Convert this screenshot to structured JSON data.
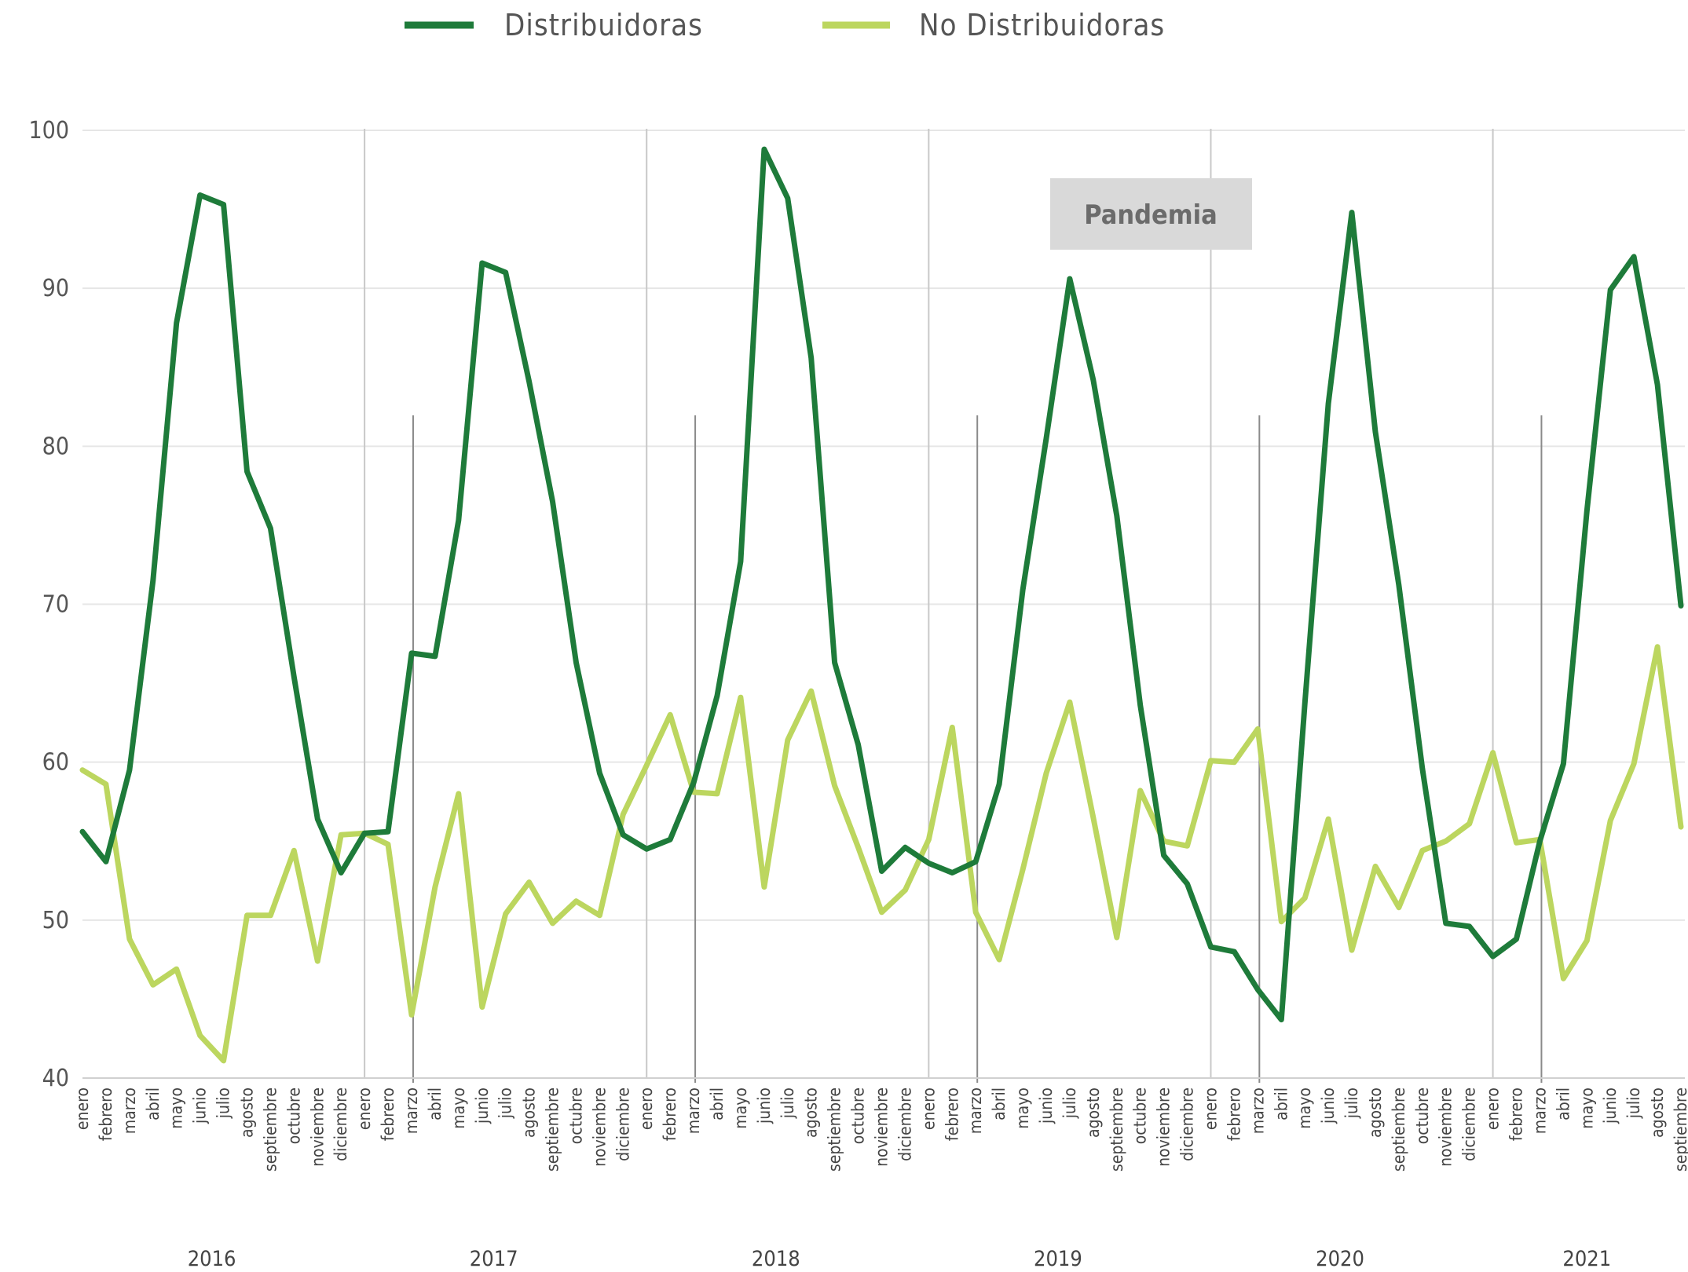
{
  "chart_data": {
    "type": "line",
    "title": "",
    "xlabel": "",
    "ylabel": "",
    "ylim": [
      40,
      100
    ],
    "yticks": [
      40,
      50,
      60,
      70,
      80,
      90,
      100
    ],
    "grid": true,
    "legend_position": "top-center",
    "annotation": "Pandemia",
    "years": [
      "2016",
      "2017",
      "2018",
      "2019",
      "2020",
      "2021"
    ],
    "months_per_year": [
      12,
      12,
      12,
      12,
      12,
      9
    ],
    "x": [
      "enero",
      "febrero",
      "marzo",
      "abril",
      "mayo",
      "junio",
      "julio",
      "agosto",
      "septiembre",
      "octubre",
      "noviembre",
      "diciembre",
      "enero",
      "febrero",
      "marzo",
      "abril",
      "mayo",
      "junio",
      "julio",
      "agosto",
      "septiembre",
      "octubre",
      "noviembre",
      "diciembre",
      "enero",
      "febrero",
      "marzo",
      "abril",
      "mayo",
      "junio",
      "julio",
      "agosto",
      "septiembre",
      "octubre",
      "noviembre",
      "diciembre",
      "enero",
      "febrero",
      "marzo",
      "abril",
      "mayo",
      "junio",
      "julio",
      "agosto",
      "septiembre",
      "octubre",
      "noviembre",
      "diciembre",
      "enero",
      "febrero",
      "marzo",
      "abril",
      "mayo",
      "junio",
      "julio",
      "agosto",
      "septiembre",
      "octubre",
      "noviembre",
      "diciembre",
      "enero",
      "febrero",
      "marzo",
      "abril",
      "mayo",
      "junio",
      "julio",
      "agosto",
      "septiembre"
    ],
    "series": [
      {
        "name": "Distribuidoras",
        "color": "#1e7b3a",
        "values": [
          55.6,
          53.7,
          59.5,
          71.5,
          87.8,
          95.9,
          95.3,
          78.4,
          74.8,
          65.4,
          56.4,
          53.0,
          55.5,
          55.6,
          66.9,
          66.7,
          75.3,
          91.6,
          91.0,
          84.1,
          76.5,
          66.3,
          59.3,
          55.4,
          54.5,
          55.1,
          58.7,
          64.2,
          72.7,
          98.8,
          95.7,
          85.6,
          66.3,
          61.1,
          53.1,
          54.6,
          53.6,
          53.0,
          53.7,
          58.6,
          70.9,
          80.5,
          90.6,
          84.2,
          75.6,
          63.6,
          54.1,
          52.3,
          48.3,
          48.0,
          45.6,
          43.7,
          63.7,
          82.7,
          94.8,
          80.9,
          71.2,
          59.6,
          49.8,
          49.6,
          47.7,
          48.8,
          55.0,
          59.9,
          75.9,
          89.9,
          92.0,
          83.9,
          69.9
        ]
      },
      {
        "name": "No Distribuidoras",
        "color": "#bcd65f",
        "values": [
          59.5,
          58.6,
          48.8,
          45.9,
          46.9,
          42.7,
          41.1,
          50.3,
          50.3,
          54.4,
          47.4,
          55.4,
          55.5,
          54.8,
          44.0,
          52.1,
          58.0,
          44.5,
          50.4,
          52.4,
          49.8,
          51.2,
          50.3,
          56.7,
          59.8,
          63.0,
          58.1,
          58.0,
          64.1,
          52.1,
          61.4,
          64.5,
          58.5,
          54.6,
          50.5,
          51.9,
          55.1,
          62.2,
          50.5,
          47.5,
          53.2,
          59.3,
          63.8,
          56.5,
          48.9,
          58.2,
          55.0,
          54.7,
          60.1,
          60.0,
          62.1,
          49.9,
          51.4,
          56.4,
          48.1,
          53.4,
          50.8,
          54.4,
          55.0,
          56.1,
          60.6,
          54.9,
          55.1,
          46.3,
          48.7,
          56.3,
          59.9,
          67.3,
          55.9
        ]
      }
    ]
  }
}
